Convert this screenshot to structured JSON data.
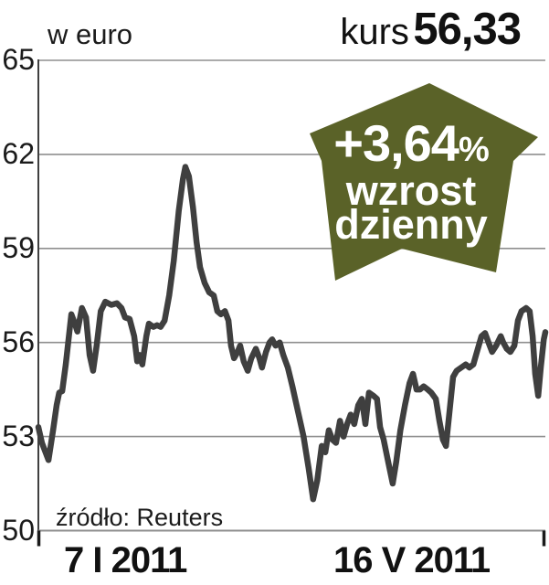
{
  "header": {
    "title": "w euro",
    "price_label": "kurs",
    "price_value": "56,33"
  },
  "badge": {
    "change": "+3,64",
    "percent_sign": "%",
    "line1": "wzrost",
    "line2": "dzienny",
    "color": "#5a6228",
    "text_color": "#ffffff"
  },
  "footer": {
    "source": "źródło: Reuters"
  },
  "chart_data": {
    "type": "line",
    "title": "w euro",
    "unit": "euro",
    "ylim": [
      50,
      65
    ],
    "yticks": [
      65,
      62,
      59,
      56,
      53,
      50
    ],
    "xtick_labels": [
      "7 I 2011",
      "16 V 2011"
    ],
    "grid": true,
    "legend": "none",
    "line_color": "#3f3f3f",
    "grid_color": "#8f8f8f",
    "last_value": 56.33,
    "daily_change_pct": 3.64,
    "series": [
      {
        "name": "kurs (euro)",
        "points": [
          [
            0,
            53.3
          ],
          [
            0.007,
            52.8
          ],
          [
            0.02,
            52.25
          ],
          [
            0.029,
            53.2
          ],
          [
            0.036,
            54.0
          ],
          [
            0.041,
            54.4
          ],
          [
            0.047,
            54.45
          ],
          [
            0.054,
            55.3
          ],
          [
            0.065,
            56.9
          ],
          [
            0.072,
            56.6
          ],
          [
            0.077,
            56.35
          ],
          [
            0.086,
            57.1
          ],
          [
            0.094,
            56.8
          ],
          [
            0.101,
            55.6
          ],
          [
            0.108,
            55.1
          ],
          [
            0.115,
            55.9
          ],
          [
            0.123,
            57.0
          ],
          [
            0.132,
            57.3
          ],
          [
            0.144,
            57.2
          ],
          [
            0.155,
            57.25
          ],
          [
            0.164,
            57.1
          ],
          [
            0.171,
            56.8
          ],
          [
            0.18,
            56.75
          ],
          [
            0.189,
            56.2
          ],
          [
            0.195,
            55.4
          ],
          [
            0.2,
            55.6
          ],
          [
            0.205,
            55.3
          ],
          [
            0.213,
            56.2
          ],
          [
            0.218,
            56.6
          ],
          [
            0.227,
            56.5
          ],
          [
            0.234,
            56.55
          ],
          [
            0.241,
            56.5
          ],
          [
            0.249,
            56.7
          ],
          [
            0.258,
            57.5
          ],
          [
            0.267,
            58.6
          ],
          [
            0.277,
            60.2
          ],
          [
            0.285,
            61.2
          ],
          [
            0.29,
            61.6
          ],
          [
            0.297,
            61.3
          ],
          [
            0.305,
            60.3
          ],
          [
            0.312,
            59.2
          ],
          [
            0.319,
            58.4
          ],
          [
            0.328,
            57.9
          ],
          [
            0.337,
            57.6
          ],
          [
            0.346,
            57.5
          ],
          [
            0.353,
            57.0
          ],
          [
            0.36,
            56.9
          ],
          [
            0.368,
            57.0
          ],
          [
            0.375,
            56.7
          ],
          [
            0.38,
            55.9
          ],
          [
            0.386,
            55.5
          ],
          [
            0.393,
            55.7
          ],
          [
            0.398,
            55.9
          ],
          [
            0.405,
            55.4
          ],
          [
            0.413,
            55.1
          ],
          [
            0.42,
            55.5
          ],
          [
            0.429,
            55.8
          ],
          [
            0.436,
            55.5
          ],
          [
            0.441,
            55.2
          ],
          [
            0.449,
            55.7
          ],
          [
            0.456,
            56.0
          ],
          [
            0.461,
            56.1
          ],
          [
            0.468,
            55.9
          ],
          [
            0.476,
            56.0
          ],
          [
            0.483,
            55.6
          ],
          [
            0.492,
            55.2
          ],
          [
            0.501,
            54.6
          ],
          [
            0.512,
            53.8
          ],
          [
            0.523,
            53.0
          ],
          [
            0.533,
            52.0
          ],
          [
            0.542,
            51.0
          ],
          [
            0.55,
            51.6
          ],
          [
            0.559,
            52.7
          ],
          [
            0.566,
            52.5
          ],
          [
            0.573,
            53.2
          ],
          [
            0.58,
            52.9
          ],
          [
            0.587,
            52.8
          ],
          [
            0.595,
            53.5
          ],
          [
            0.602,
            53.0
          ],
          [
            0.609,
            53.4
          ],
          [
            0.616,
            53.7
          ],
          [
            0.623,
            53.4
          ],
          [
            0.631,
            54.0
          ],
          [
            0.638,
            54.2
          ],
          [
            0.645,
            53.4
          ],
          [
            0.652,
            54.4
          ],
          [
            0.661,
            54.3
          ],
          [
            0.668,
            54.2
          ],
          [
            0.674,
            53.3
          ],
          [
            0.681,
            52.9
          ],
          [
            0.69,
            52.2
          ],
          [
            0.699,
            51.5
          ],
          [
            0.706,
            52.2
          ],
          [
            0.714,
            53.2
          ],
          [
            0.723,
            54.0
          ],
          [
            0.732,
            54.7
          ],
          [
            0.739,
            55.0
          ],
          [
            0.746,
            54.5
          ],
          [
            0.753,
            54.5
          ],
          [
            0.76,
            54.6
          ],
          [
            0.768,
            54.5
          ],
          [
            0.775,
            54.4
          ],
          [
            0.784,
            54.2
          ],
          [
            0.791,
            53.5
          ],
          [
            0.798,
            52.9
          ],
          [
            0.804,
            52.7
          ],
          [
            0.811,
            53.8
          ],
          [
            0.818,
            54.9
          ],
          [
            0.825,
            55.1
          ],
          [
            0.834,
            55.2
          ],
          [
            0.843,
            55.3
          ],
          [
            0.85,
            55.2
          ],
          [
            0.858,
            55.3
          ],
          [
            0.865,
            55.7
          ],
          [
            0.874,
            56.2
          ],
          [
            0.881,
            56.3
          ],
          [
            0.888,
            56.0
          ],
          [
            0.895,
            55.7
          ],
          [
            0.903,
            55.9
          ],
          [
            0.912,
            56.2
          ],
          [
            0.917,
            56.0
          ],
          [
            0.924,
            55.8
          ],
          [
            0.931,
            55.7
          ],
          [
            0.939,
            55.9
          ],
          [
            0.946,
            56.7
          ],
          [
            0.953,
            57.0
          ],
          [
            0.962,
            57.1
          ],
          [
            0.969,
            57.0
          ],
          [
            0.975,
            56.2
          ],
          [
            0.98,
            55.0
          ],
          [
            0.986,
            54.3
          ],
          [
            0.991,
            55.2
          ],
          [
            0.997,
            56.1
          ],
          [
            1,
            56.33
          ]
        ]
      }
    ]
  }
}
